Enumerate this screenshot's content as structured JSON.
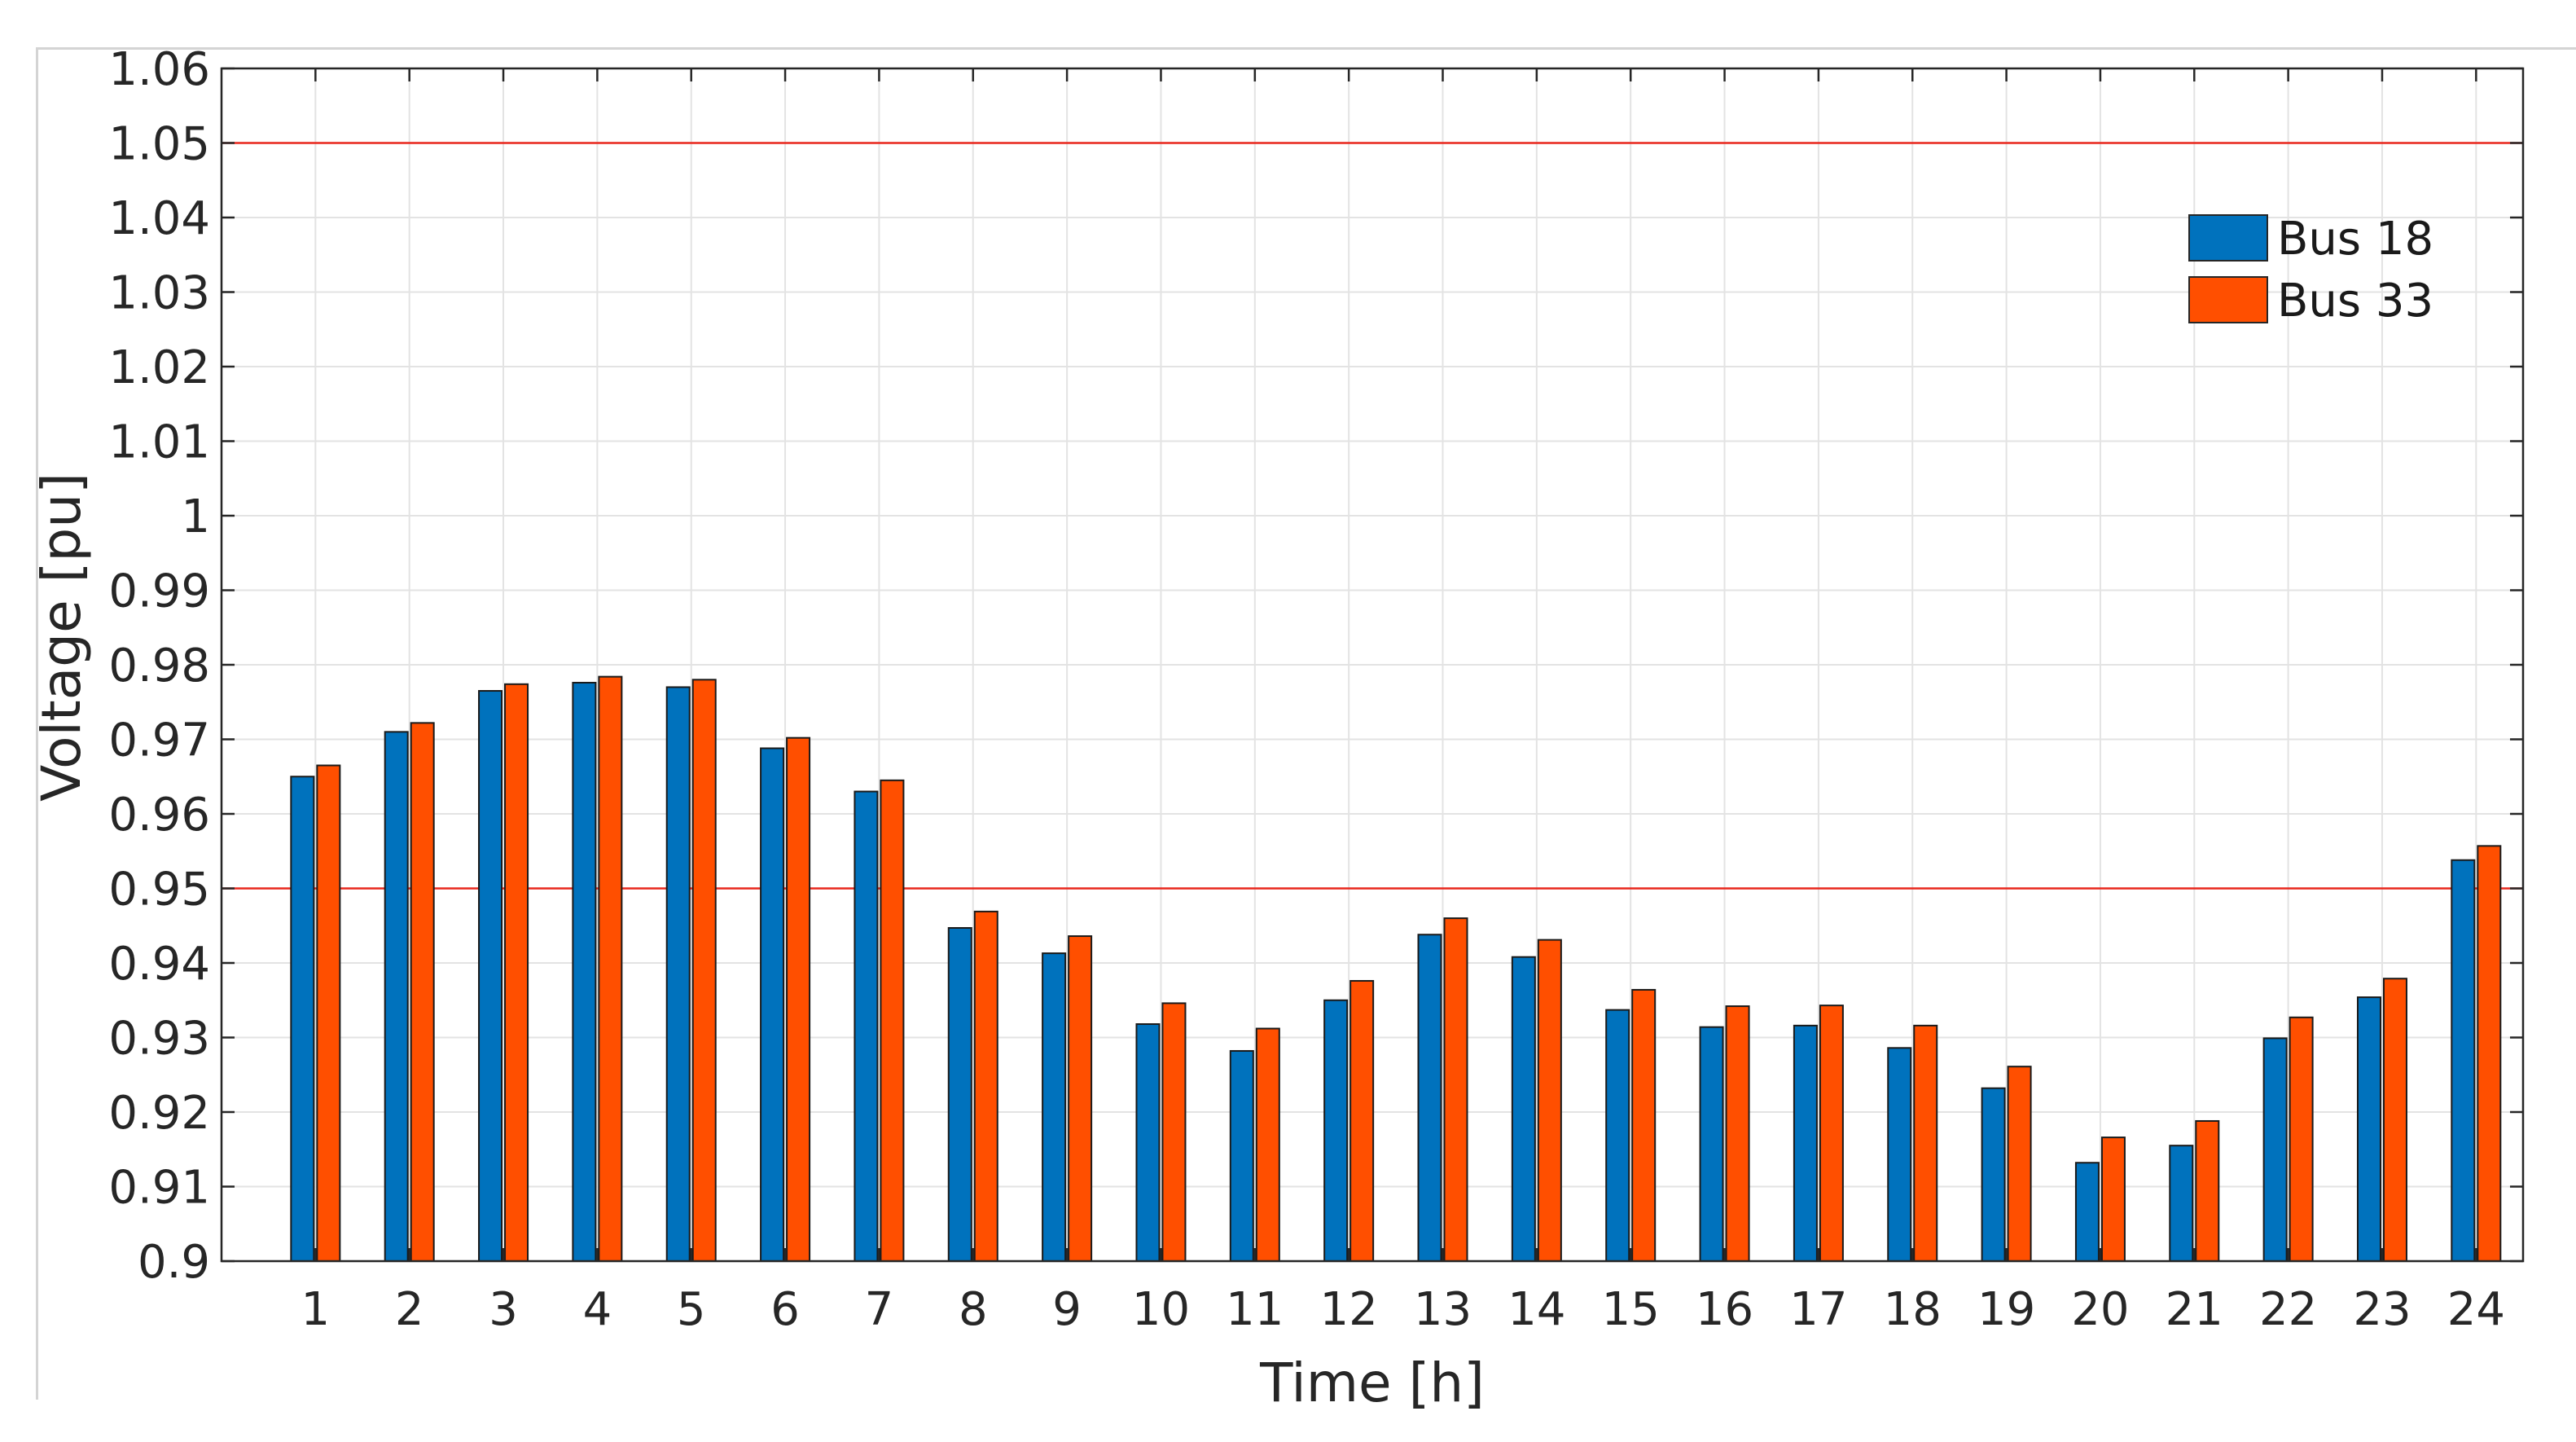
{
  "chart_data": {
    "type": "bar",
    "title": "",
    "xlabel": "Time [h]",
    "ylabel": "Voltage [pu]",
    "ylim": [
      0.9,
      1.06
    ],
    "yticks": [
      "0.9",
      "0.91",
      "0.92",
      "0.93",
      "0.94",
      "0.95",
      "0.96",
      "0.97",
      "0.98",
      "0.99",
      "1",
      "1.01",
      "1.02",
      "1.03",
      "1.04",
      "1.05",
      "1.06"
    ],
    "categories": [
      "1",
      "2",
      "3",
      "4",
      "5",
      "6",
      "7",
      "8",
      "9",
      "10",
      "11",
      "12",
      "13",
      "14",
      "15",
      "16",
      "17",
      "18",
      "19",
      "20",
      "21",
      "22",
      "23",
      "24"
    ],
    "series": [
      {
        "name": "Bus 18",
        "color": "#0072BD",
        "values": [
          0.965,
          0.971,
          0.9765,
          0.9776,
          0.977,
          0.9688,
          0.963,
          0.9447,
          0.9413,
          0.9318,
          0.9282,
          0.935,
          0.9438,
          0.9408,
          0.9337,
          0.9314,
          0.9316,
          0.9286,
          0.9232,
          0.9132,
          0.9155,
          0.9299,
          0.9354,
          0.9538
        ]
      },
      {
        "name": "Bus 33",
        "color": "#FF4F00",
        "values": [
          0.9665,
          0.9722,
          0.9774,
          0.9784,
          0.978,
          0.9702,
          0.9645,
          0.9469,
          0.9436,
          0.9346,
          0.9312,
          0.9376,
          0.946,
          0.9431,
          0.9364,
          0.9342,
          0.9343,
          0.9316,
          0.9261,
          0.9166,
          0.9188,
          0.9327,
          0.9379,
          0.9557
        ]
      }
    ],
    "reference_lines": [
      {
        "value": 1.05,
        "color": "#E8261C"
      },
      {
        "value": 0.95,
        "color": "#E8261C"
      }
    ],
    "grid": true,
    "legend_position": "top-right"
  }
}
